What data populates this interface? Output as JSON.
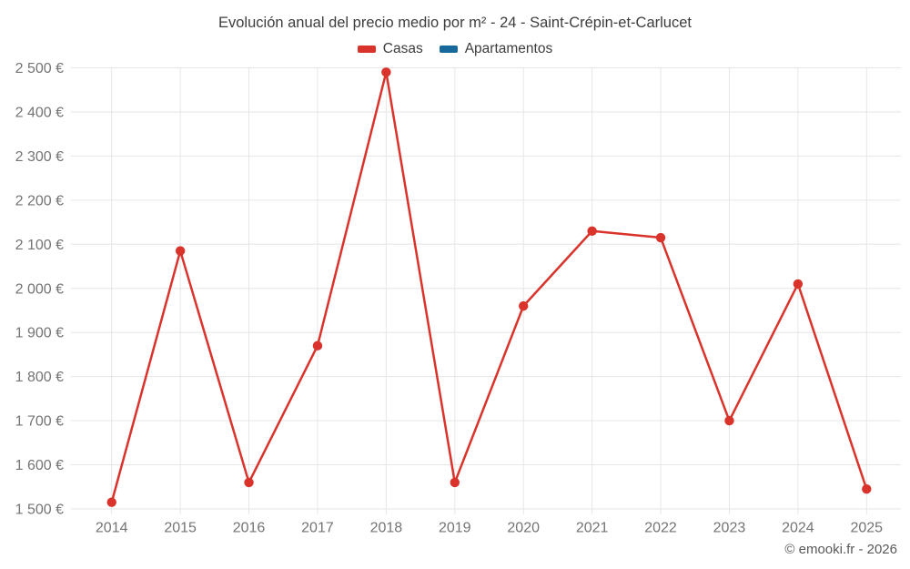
{
  "header": {
    "title": "Evolución anual del precio medio por m² - 24 - Saint-Crépin-et-Carlucet"
  },
  "legend": [
    {
      "label": "Casas",
      "color": "#d9332b"
    },
    {
      "label": "Apartamentos",
      "color": "#17689b"
    }
  ],
  "footer": {
    "credit": "© emooki.fr - 2026"
  },
  "colors": {
    "casas": "#d9332b",
    "apartamentos": "#17689b",
    "gridline": "#e6e6e6",
    "axis_label": "#747474",
    "title_text": "#3d3d3d"
  },
  "chart_data": {
    "type": "line",
    "title": "Evolución anual del precio medio por m² - 24 - Saint-Crépin-et-Carlucet",
    "categories": [
      "2014",
      "2015",
      "2016",
      "2017",
      "2018",
      "2019",
      "2020",
      "2021",
      "2022",
      "2023",
      "2024",
      "2025"
    ],
    "series": [
      {
        "name": "Casas",
        "color": "#d9332b",
        "values": [
          1515,
          2085,
          1560,
          1870,
          2490,
          1560,
          1960,
          2130,
          2115,
          1700,
          2010,
          1545
        ]
      },
      {
        "name": "Apartamentos",
        "color": "#17689b",
        "values": []
      }
    ],
    "xlabel": "",
    "ylabel": "",
    "ylim": [
      1500,
      2500
    ],
    "y_ticks": [
      1500,
      1600,
      1700,
      1800,
      1900,
      2000,
      2100,
      2200,
      2300,
      2400,
      2500
    ],
    "y_tick_labels": [
      "1 500 €",
      "1 600 €",
      "1 700 €",
      "1 800 €",
      "1 900 €",
      "2 000 €",
      "2 100 €",
      "2 200 €",
      "2 300 €",
      "2 400 €",
      "2 500 €"
    ],
    "grid": true,
    "legend_position": "top",
    "marker": "circle",
    "currency": "€"
  }
}
